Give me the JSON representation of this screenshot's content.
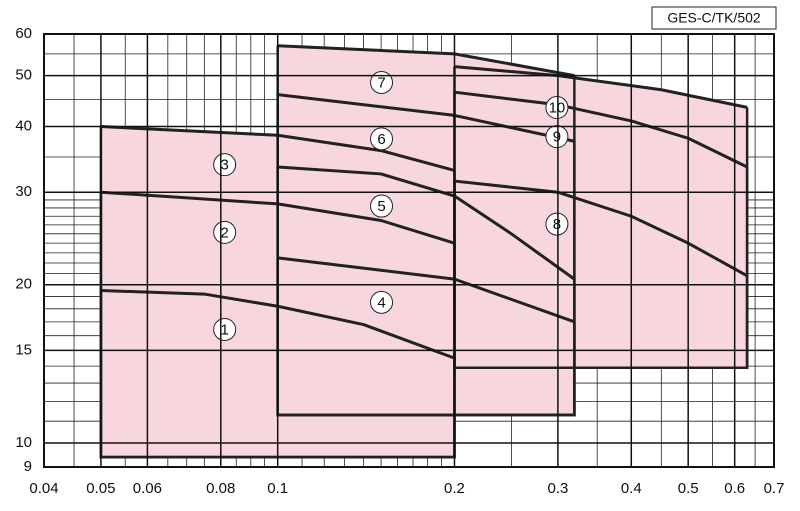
{
  "chart_data": {
    "type": "zones",
    "title": "GES-C/TK/502",
    "log_x": true,
    "log_y": true,
    "xlim": [
      0.04,
      0.7
    ],
    "ylim": [
      9,
      60
    ],
    "xticks": [
      0.04,
      0.05,
      0.06,
      0.08,
      0.1,
      0.2,
      0.3,
      0.4,
      0.5,
      0.6,
      0.7
    ],
    "yticks": [
      9,
      10,
      15,
      20,
      30,
      40,
      50,
      60
    ],
    "x_minor_grid": [
      0.045,
      0.055,
      0.065,
      0.07,
      0.075,
      0.085,
      0.09,
      0.095,
      0.11,
      0.12,
      0.13,
      0.14,
      0.15,
      0.16,
      0.17,
      0.18,
      0.19,
      0.25,
      0.35,
      0.45,
      0.55,
      0.65
    ],
    "y_minor_grid": [
      11,
      12,
      13,
      14,
      16,
      17,
      18,
      19,
      21,
      22,
      23,
      24,
      25,
      26,
      27,
      28,
      29,
      35,
      45,
      55
    ],
    "fill_color": "#f7d7dd",
    "line_color": "#222222",
    "series": [
      {
        "name": "1",
        "bottom": 9.4,
        "x": [
          0.05,
          0.075,
          0.1,
          0.14,
          0.2
        ],
        "values": [
          19.5,
          19.2,
          18.2,
          16.8,
          14.5
        ]
      },
      {
        "name": "2",
        "bottom": 9.4,
        "x": [
          0.05,
          0.1,
          0.15,
          0.2
        ],
        "values": [
          30,
          28.5,
          26.5,
          24
        ]
      },
      {
        "name": "3",
        "bottom": 9.4,
        "x": [
          0.05,
          0.1,
          0.15,
          0.2
        ],
        "values": [
          40,
          38.5,
          36,
          33
        ]
      },
      {
        "name": "4",
        "bottom": 11.3,
        "x": [
          0.1,
          0.2,
          0.32
        ],
        "values": [
          22.5,
          20.5,
          17
        ]
      },
      {
        "name": "5",
        "bottom": 11.3,
        "x": [
          0.1,
          0.15,
          0.2,
          0.25,
          0.32
        ],
        "values": [
          33.5,
          32.5,
          29.5,
          25,
          20.5
        ]
      },
      {
        "name": "6",
        "bottom": 11.3,
        "x": [
          0.1,
          0.2,
          0.32
        ],
        "values": [
          46,
          42,
          37.5
        ]
      },
      {
        "name": "7",
        "bottom": 11.3,
        "x": [
          0.1,
          0.2,
          0.32
        ],
        "values": [
          57,
          55,
          50
        ]
      },
      {
        "name": "8",
        "bottom": 13.9,
        "x": [
          0.2,
          0.3,
          0.4,
          0.5,
          0.63
        ],
        "values": [
          31.5,
          30,
          27,
          24,
          20.8
        ]
      },
      {
        "name": "9",
        "bottom": 13.9,
        "x": [
          0.2,
          0.3,
          0.4,
          0.5,
          0.63
        ],
        "values": [
          46.5,
          44,
          41,
          38,
          33.5
        ]
      },
      {
        "name": "10",
        "bottom": 13.9,
        "x": [
          0.2,
          0.3,
          0.45,
          0.63
        ],
        "values": [
          52,
          50,
          47,
          43.5
        ]
      }
    ]
  }
}
